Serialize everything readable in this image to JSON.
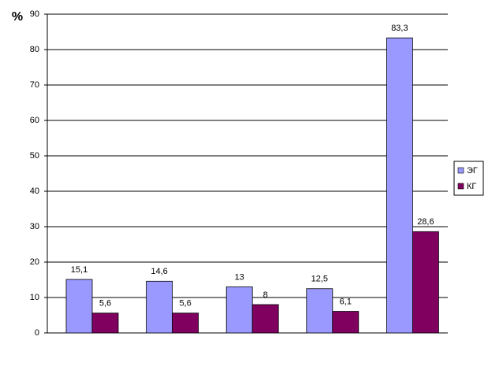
{
  "chart_data": {
    "type": "bar",
    "ylabel": "%",
    "categories": [
      null,
      null,
      null,
      null,
      null
    ],
    "series": [
      {
        "name": "ЭГ",
        "color": "#9999ff",
        "values": [
          15.1,
          14.6,
          13,
          12.5,
          83.3
        ],
        "value_labels": [
          "15,1",
          "14,6",
          "13",
          "12,5",
          "83,3"
        ]
      },
      {
        "name": "КГ",
        "color": "#800060",
        "values": [
          5.6,
          5.6,
          8,
          6.1,
          28.6
        ],
        "value_labels": [
          "5,6",
          "5,6",
          "8",
          "6,1",
          "28,6"
        ]
      }
    ],
    "ylim": [
      0,
      90
    ],
    "yticks": [
      0,
      10,
      20,
      30,
      40,
      50,
      60,
      70,
      80,
      90
    ],
    "grid": true,
    "legend": "right"
  }
}
